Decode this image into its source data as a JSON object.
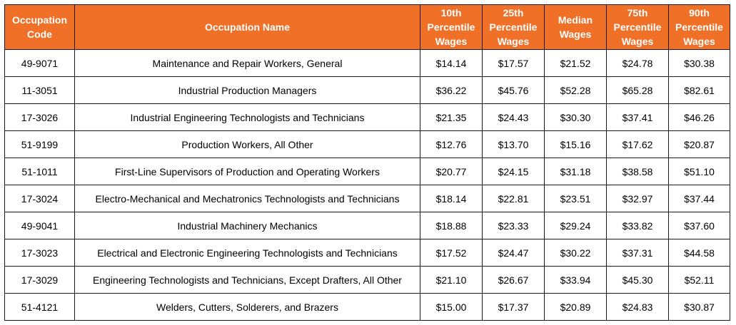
{
  "theme": {
    "header_bg": "#f07028",
    "header_text": "#ffffff",
    "border": "#1a1a1a"
  },
  "headers": {
    "code": [
      "Occupation",
      "Code"
    ],
    "name": [
      "Occupation Name"
    ],
    "p10": [
      "10th",
      "Percentile",
      "Wages"
    ],
    "p25": [
      "25th",
      "Percentile",
      "Wages"
    ],
    "median": [
      "Median",
      "Wages"
    ],
    "p75": [
      "75th",
      "Percentile",
      "Wages"
    ],
    "p90": [
      "90th",
      "Percentile",
      "Wages"
    ]
  },
  "rows": [
    {
      "code": "49-9071",
      "name": "Maintenance and Repair Workers, General",
      "p10": "$14.14",
      "p25": "$17.57",
      "median": "$21.52",
      "p75": "$24.78",
      "p90": "$30.38"
    },
    {
      "code": "11-3051",
      "name": "Industrial Production Managers",
      "p10": "$36.22",
      "p25": "$45.76",
      "median": "$52.28",
      "p75": "$65.28",
      "p90": "$82.61"
    },
    {
      "code": "17-3026",
      "name": "Industrial Engineering Technologists and Technicians",
      "p10": "$21.35",
      "p25": "$24.43",
      "median": "$30.30",
      "p75": "$37.41",
      "p90": "$46.26"
    },
    {
      "code": "51-9199",
      "name": "Production Workers, All Other",
      "p10": "$12.76",
      "p25": "$13.70",
      "median": "$15.16",
      "p75": "$17.62",
      "p90": "$20.87"
    },
    {
      "code": "51-1011",
      "name": "First-Line Supervisors of Production and Operating Workers",
      "p10": "$20.77",
      "p25": "$24.15",
      "median": "$31.18",
      "p75": "$38.58",
      "p90": "$51.10"
    },
    {
      "code": "17-3024",
      "name": "Electro-Mechanical and Mechatronics Technologists and Technicians",
      "p10": "$18.14",
      "p25": "$22.81",
      "median": "$23.51",
      "p75": "$32.97",
      "p90": "$37.44"
    },
    {
      "code": "49-9041",
      "name": "Industrial Machinery Mechanics",
      "p10": "$18.88",
      "p25": "$23.33",
      "median": "$29.24",
      "p75": "$33.82",
      "p90": "$37.60"
    },
    {
      "code": "17-3023",
      "name": "Electrical and Electronic Engineering Technologists and Technicians",
      "p10": "$17.52",
      "p25": "$24.47",
      "median": "$30.22",
      "p75": "$37.31",
      "p90": "$44.58"
    },
    {
      "code": "17-3029",
      "name": "Engineering Technologists and Technicians, Except Drafters, All Other",
      "p10": "$21.10",
      "p25": "$26.67",
      "median": "$33.94",
      "p75": "$45.30",
      "p90": "$52.11"
    },
    {
      "code": "51-4121",
      "name": "Welders, Cutters, Solderers, and Brazers",
      "p10": "$15.00",
      "p25": "$17.37",
      "median": "$20.89",
      "p75": "$24.83",
      "p90": "$30.87"
    }
  ]
}
